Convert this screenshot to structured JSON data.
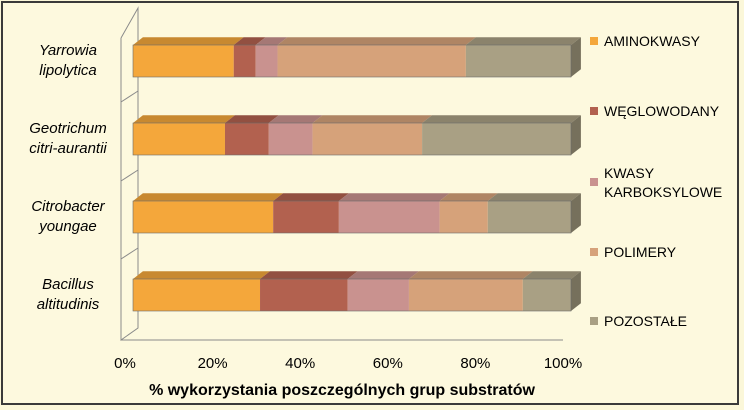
{
  "chart_data": {
    "type": "bar",
    "orientation": "horizontal",
    "stacked": "100%",
    "style": "3d",
    "categories": [
      [
        "Yarrowia",
        "lipolytica"
      ],
      [
        "Geotrichum",
        "citri-aurantii"
      ],
      [
        "Citrobacter",
        "youngae"
      ],
      [
        "Bacillus",
        "altitudinis"
      ]
    ],
    "series": [
      {
        "name": "AMINOKWASY",
        "color": "#f4a73b",
        "values": [
          23,
          21,
          32,
          29
        ]
      },
      {
        "name": "WĘGLOWODANY",
        "color": "#b2614f",
        "values": [
          5,
          10,
          15,
          20
        ]
      },
      {
        "name": "KWASY KARBOKSYLOWE",
        "color": "#c9928f",
        "values": [
          5,
          10,
          23,
          14
        ]
      },
      {
        "name": "POLIMERY",
        "color": "#d6a27a",
        "values": [
          43,
          25,
          11,
          26
        ]
      },
      {
        "name": "POZOSTAŁE",
        "color": "#a9a084",
        "values": [
          24,
          34,
          19,
          11
        ]
      }
    ],
    "xlabel": "% wykorzystania poszczególnych grup substratów",
    "ylabel": "",
    "xlim": [
      0,
      100
    ],
    "x_ticks": [
      "0%",
      "20%",
      "40%",
      "60%",
      "80%",
      "100%"
    ],
    "grid": false,
    "legend_position": "right"
  }
}
